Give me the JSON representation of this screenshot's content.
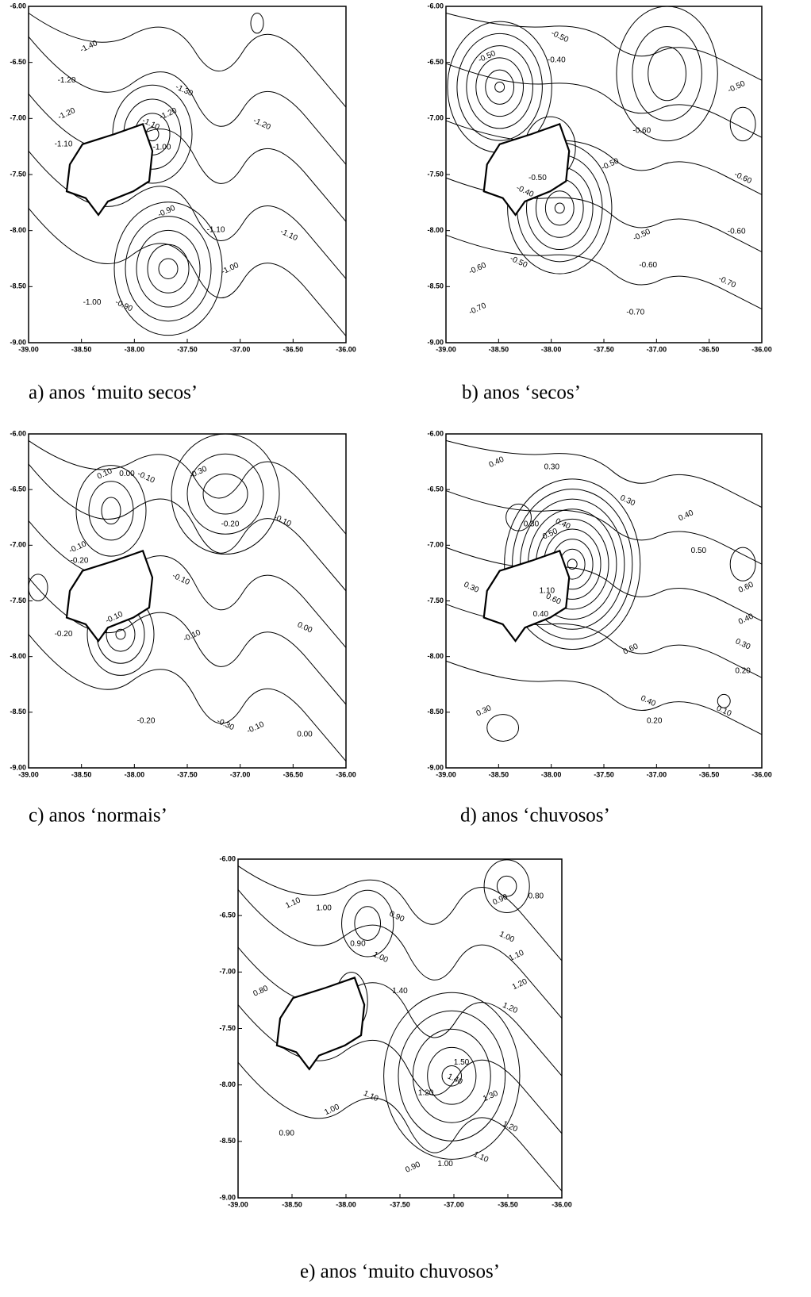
{
  "panels": [
    {
      "caption": "a) anos ‘muito secos’",
      "x_tick_labels": [
        "-39.00",
        "-38.50",
        "-38.00",
        "-37.50",
        "-37.00",
        "-36.50",
        "-36.00"
      ],
      "y_tick_labels": [
        "-6.00",
        "-6.50",
        "-7.00",
        "-7.50",
        "-8.00",
        "-8.50",
        "-9.00"
      ],
      "contour_labels": [
        "-1.40",
        "-1.20",
        "-1.30",
        "-1.20",
        "-1.10",
        "-1.10",
        "-1.20",
        "-1.00",
        "-1.20",
        "-0.90",
        "-1.10",
        "-1.10",
        "-1.00",
        "-1.00",
        "-0.90"
      ]
    },
    {
      "caption": "b) anos ‘secos’",
      "x_tick_labels": [
        "-39.00",
        "-38.50",
        "-38.00",
        "-37.50",
        "-37.00",
        "-36.50",
        "-36.00"
      ],
      "y_tick_labels": [
        "-6.00",
        "-6.50",
        "-7.00",
        "-7.50",
        "-8.00",
        "-8.50",
        "-9.00"
      ],
      "contour_labels": [
        "-0.50",
        "-0.40",
        "-0.50",
        "-0.50",
        "-0.60",
        "-0.60",
        "-0.50",
        "-0.50",
        "-0.40",
        "-0.50",
        "-0.60",
        "-0.50",
        "-0.60",
        "-0.60",
        "-0.70",
        "-0.70",
        "-0.70"
      ]
    },
    {
      "caption": "c) anos ‘normais’",
      "x_tick_labels": [
        "-39.00",
        "-38.50",
        "-38.00",
        "-37.50",
        "-37.00",
        "-36.50",
        "-36.00"
      ],
      "y_tick_labels": [
        "-6.00",
        "-6.50",
        "-7.00",
        "-7.50",
        "-8.00",
        "-8.50",
        "-9.00"
      ],
      "contour_labels": [
        "0.10",
        "0.00",
        "-0.10",
        "-0.30",
        "-0.20",
        "-0.10",
        "-0.10",
        "-0.20",
        "-0.10",
        "-0.10",
        "-0.20",
        "0.00",
        "-0.10",
        "-0.20",
        "-0.30",
        "-0.10",
        "0.00"
      ]
    },
    {
      "caption": "d) anos ‘chuvosos’",
      "x_tick_labels": [
        "-39.00",
        "-38.50",
        "-38.00",
        "-37.50",
        "-37.00",
        "-36.50",
        "-36.00"
      ],
      "y_tick_labels": [
        "-6.00",
        "-6.50",
        "-7.00",
        "-7.50",
        "-8.00",
        "-8.50",
        "-9.00"
      ],
      "contour_labels": [
        "0.40",
        "0.30",
        "0.30",
        "0.40",
        "0.30",
        "0.40",
        "0.50",
        "0.50",
        "0.30",
        "0.60",
        "1.10",
        "0.60",
        "0.40",
        "0.40",
        "0.30",
        "0.60",
        "0.20",
        "0.40",
        "0.30",
        "0.20",
        "0.10"
      ]
    },
    {
      "caption": "e) anos ‘muito chuvosos’",
      "x_tick_labels": [
        "-39.00",
        "-38.50",
        "-38.00",
        "-37.50",
        "-37.00",
        "-36.50",
        "-36.00"
      ],
      "y_tick_labels": [
        "-6.00",
        "-6.50",
        "-7.00",
        "-7.50",
        "-8.00",
        "-8.50",
        "-9.00"
      ],
      "contour_labels": [
        "1.10",
        "1.00",
        "0.90",
        "0.90",
        "0.80",
        "1.00",
        "1.10",
        "0.90",
        "1.00",
        "1.20",
        "1.40",
        "1.20",
        "0.80",
        "1.50",
        "1.40",
        "1.30",
        "1.20",
        "1.10",
        "1.00",
        "0.90",
        "1.20",
        "0.90",
        "1.00",
        "1.10"
      ]
    }
  ]
}
